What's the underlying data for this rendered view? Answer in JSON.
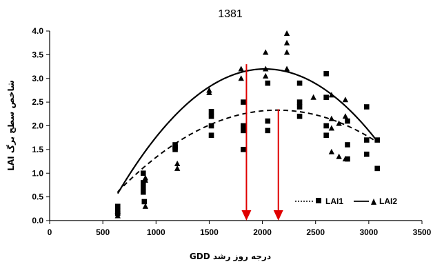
{
  "chart_data": {
    "type": "scatter",
    "title": "1381",
    "xlabel": "GDD  درجه روز رشد",
    "ylabel": "LAI شاخص سطح برگ",
    "xlim": [
      0,
      3500
    ],
    "ylim": [
      0.0,
      4.0
    ],
    "x_ticks": [
      "0",
      "500",
      "1000",
      "1500",
      "2000",
      "2500",
      "3000",
      "3500"
    ],
    "y_ticks": [
      "0.0",
      "0.5",
      "1.0",
      "1.5",
      "2.0",
      "2.5",
      "3.0",
      "3.5",
      "4.0"
    ],
    "grid": false,
    "legend_position": "bottom-right",
    "series": [
      {
        "name": "LAI1",
        "marker": "square",
        "line_style": "dashed",
        "color": "#000000",
        "points": [
          [
            640,
            0.3
          ],
          [
            640,
            0.2
          ],
          [
            640,
            0.15
          ],
          [
            880,
            1.0
          ],
          [
            880,
            0.8
          ],
          [
            880,
            0.7
          ],
          [
            880,
            0.6
          ],
          [
            890,
            0.4
          ],
          [
            1180,
            1.6
          ],
          [
            1180,
            1.55
          ],
          [
            1180,
            1.5
          ],
          [
            1520,
            2.3
          ],
          [
            1520,
            2.2
          ],
          [
            1520,
            2.0
          ],
          [
            1520,
            1.8
          ],
          [
            1820,
            2.5
          ],
          [
            1820,
            2.0
          ],
          [
            1820,
            1.95
          ],
          [
            1820,
            1.9
          ],
          [
            1820,
            1.5
          ],
          [
            2050,
            2.9
          ],
          [
            2050,
            2.1
          ],
          [
            2050,
            1.9
          ],
          [
            2350,
            2.9
          ],
          [
            2350,
            2.5
          ],
          [
            2350,
            2.4
          ],
          [
            2350,
            2.2
          ],
          [
            2600,
            3.1
          ],
          [
            2600,
            2.6
          ],
          [
            2600,
            2.0
          ],
          [
            2600,
            1.8
          ],
          [
            2800,
            2.1
          ],
          [
            2800,
            1.6
          ],
          [
            2800,
            1.3
          ],
          [
            2980,
            2.4
          ],
          [
            2980,
            1.7
          ],
          [
            2980,
            1.4
          ],
          [
            3080,
            1.7
          ],
          [
            3080,
            1.1
          ]
        ],
        "fit": {
          "type": "quadratic",
          "a": -7.65e-07,
          "b": 0.003276,
          "c": -1.177,
          "x_range": [
            640,
            3080
          ]
        }
      },
      {
        "name": "LAI2",
        "marker": "triangle",
        "line_style": "solid",
        "color": "#000000",
        "points": [
          [
            640,
            0.2
          ],
          [
            640,
            0.1
          ],
          [
            900,
            0.9
          ],
          [
            900,
            0.85
          ],
          [
            900,
            0.3
          ],
          [
            1200,
            1.2
          ],
          [
            1200,
            1.1
          ],
          [
            1500,
            2.75
          ],
          [
            1500,
            2.7
          ],
          [
            1800,
            3.2
          ],
          [
            1800,
            3.0
          ],
          [
            2030,
            3.55
          ],
          [
            2030,
            3.2
          ],
          [
            2030,
            3.05
          ],
          [
            2230,
            3.95
          ],
          [
            2230,
            3.75
          ],
          [
            2230,
            3.55
          ],
          [
            2230,
            3.2
          ],
          [
            2480,
            2.6
          ],
          [
            2650,
            2.65
          ],
          [
            2650,
            2.15
          ],
          [
            2650,
            1.95
          ],
          [
            2650,
            1.45
          ],
          [
            2720,
            2.05
          ],
          [
            2720,
            1.35
          ],
          [
            2780,
            2.55
          ],
          [
            2780,
            2.2
          ],
          [
            2780,
            1.3
          ]
        ],
        "fit": {
          "type": "quadratic",
          "a": -1.37e-06,
          "b": 0.005548,
          "c": -2.418,
          "x_range": [
            640,
            3080
          ]
        }
      }
    ],
    "annotations": [
      {
        "type": "arrow",
        "x": 1850,
        "y_from": 3.3,
        "y_to": 0.0,
        "color": "#e00000"
      },
      {
        "type": "arrow",
        "x": 2150,
        "y_from": 2.35,
        "y_to": 0.0,
        "color": "#e00000"
      }
    ]
  }
}
